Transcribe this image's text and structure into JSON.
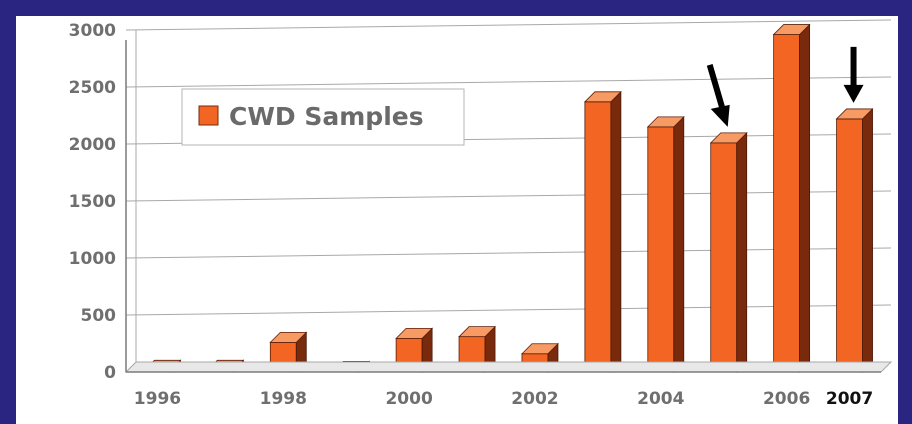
{
  "chart_data": {
    "type": "bar",
    "x": [
      1996,
      1997,
      1998,
      1999,
      2000,
      2001,
      2002,
      2003,
      2004,
      2005,
      2006,
      2007
    ],
    "x_tick_labels": [
      "1996",
      "1998",
      "2000",
      "2002",
      "2004",
      "2006",
      "2007"
    ],
    "x_tick_values": [
      1996,
      1998,
      2000,
      2002,
      2004,
      2006,
      2007
    ],
    "highlighted_x_tick": "2007",
    "series": [
      {
        "name": "CWD Samples",
        "values": [
          15,
          15,
          260,
          5,
          295,
          310,
          160,
          2370,
          2150,
          2010,
          2960,
          2220
        ]
      }
    ],
    "ylim": [
      0,
      3000
    ],
    "y_ticks": [
      0,
      500,
      1000,
      1500,
      2000,
      2500,
      3000
    ],
    "grid": true,
    "legend": "top-left",
    "annotations": [
      {
        "type": "arrow",
        "target_x": 2005
      },
      {
        "type": "arrow",
        "target_x": 2007
      }
    ],
    "colors": {
      "bar_front": "#f26522",
      "bar_side": "#7a2a0c",
      "bar_top": "#f79a63",
      "background": "#2a2580",
      "grid": "#a8a8a8"
    }
  }
}
